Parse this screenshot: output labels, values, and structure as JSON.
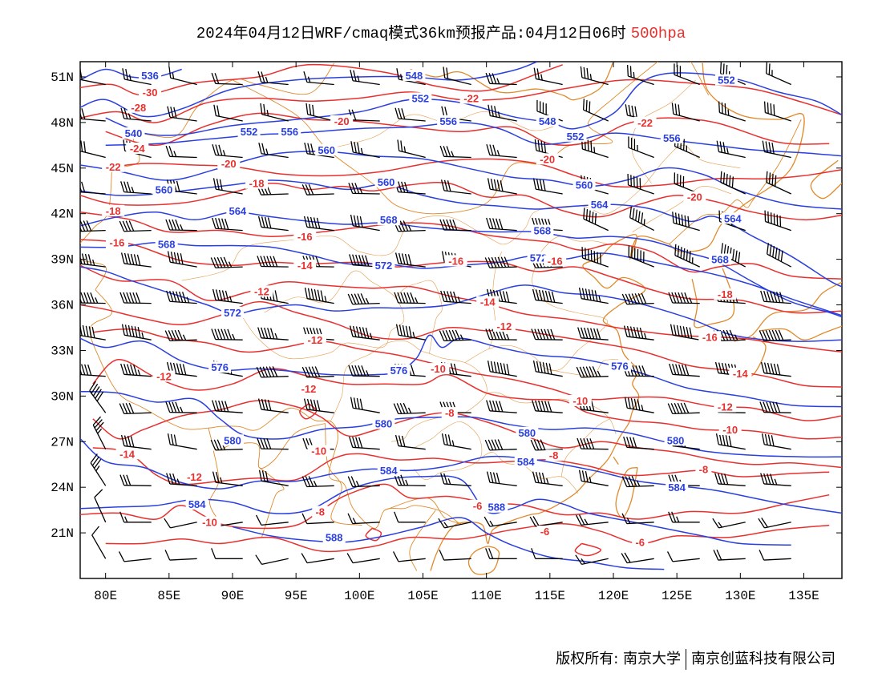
{
  "title": {
    "main": "2024年04月12日WRF/cmaq模式36km预报产品:04月12日06时",
    "level": "500hpa"
  },
  "colors": {
    "height_contour": "#2a3fe0",
    "temperature_contour": "#e8302e",
    "coastline": "#e08a2c",
    "wind_barb": "#000000"
  },
  "chart_data": {
    "type": "weather-map",
    "x_axis": {
      "range": [
        78,
        138
      ],
      "ticks": [
        80,
        85,
        90,
        95,
        100,
        105,
        110,
        115,
        120,
        125,
        130,
        135
      ],
      "labels": [
        "80E",
        "85E",
        "90E",
        "95E",
        "100E",
        "105E",
        "110E",
        "115E",
        "120E",
        "125E",
        "130E",
        "135E"
      ]
    },
    "y_axis": {
      "range": [
        18,
        52
      ],
      "ticks": [
        21,
        24,
        27,
        30,
        33,
        36,
        39,
        42,
        45,
        48,
        51
      ],
      "labels": [
        "21N",
        "24N",
        "27N",
        "30N",
        "33N",
        "36N",
        "39N",
        "42N",
        "45N",
        "48N",
        "51N"
      ]
    },
    "height_labels": [
      {
        "text": "536",
        "lon": 83.5,
        "lat": 51.0
      },
      {
        "text": "548",
        "lon": 104.3,
        "lat": 51.0
      },
      {
        "text": "552",
        "lon": 104.8,
        "lat": 49.5
      },
      {
        "text": "552",
        "lon": 128.9,
        "lat": 50.7
      },
      {
        "text": "540",
        "lon": 82.2,
        "lat": 47.2
      },
      {
        "text": "552",
        "lon": 91.3,
        "lat": 47.3
      },
      {
        "text": "556",
        "lon": 94.5,
        "lat": 47.3
      },
      {
        "text": "556",
        "lon": 107.0,
        "lat": 48.0
      },
      {
        "text": "548",
        "lon": 114.8,
        "lat": 48.0
      },
      {
        "text": "552",
        "lon": 117.0,
        "lat": 47.0
      },
      {
        "text": "556",
        "lon": 124.6,
        "lat": 46.9
      },
      {
        "text": "560",
        "lon": 97.4,
        "lat": 46.1
      },
      {
        "text": "560",
        "lon": 84.6,
        "lat": 43.5
      },
      {
        "text": "560",
        "lon": 102.1,
        "lat": 44.0
      },
      {
        "text": "560",
        "lon": 117.7,
        "lat": 43.8
      },
      {
        "text": "564",
        "lon": 90.4,
        "lat": 42.1
      },
      {
        "text": "568",
        "lon": 102.3,
        "lat": 41.5
      },
      {
        "text": "564",
        "lon": 118.9,
        "lat": 42.5
      },
      {
        "text": "564",
        "lon": 129.4,
        "lat": 41.6
      },
      {
        "text": "568",
        "lon": 84.8,
        "lat": 39.9
      },
      {
        "text": "568",
        "lon": 114.4,
        "lat": 40.8
      },
      {
        "text": "572",
        "lon": 114.1,
        "lat": 39.0
      },
      {
        "text": "572",
        "lon": 101.9,
        "lat": 38.5
      },
      {
        "text": "568",
        "lon": 128.4,
        "lat": 38.9
      },
      {
        "text": "572",
        "lon": 90.0,
        "lat": 35.4
      },
      {
        "text": "576",
        "lon": 89.0,
        "lat": 31.8
      },
      {
        "text": "576",
        "lon": 103.1,
        "lat": 31.6
      },
      {
        "text": "576",
        "lon": 120.5,
        "lat": 31.9
      },
      {
        "text": "580",
        "lon": 101.9,
        "lat": 28.1
      },
      {
        "text": "580",
        "lon": 113.2,
        "lat": 27.5
      },
      {
        "text": "580",
        "lon": 90.0,
        "lat": 27.0
      },
      {
        "text": "580",
        "lon": 124.9,
        "lat": 27.0
      },
      {
        "text": "584",
        "lon": 102.3,
        "lat": 25.0
      },
      {
        "text": "584",
        "lon": 113.1,
        "lat": 25.6
      },
      {
        "text": "584",
        "lon": 87.2,
        "lat": 22.8
      },
      {
        "text": "584",
        "lon": 125.0,
        "lat": 23.9
      },
      {
        "text": "588",
        "lon": 110.8,
        "lat": 22.6
      },
      {
        "text": "588",
        "lon": 98.0,
        "lat": 20.6
      }
    ],
    "temperature_labels": [
      {
        "text": "-30",
        "lon": 83.5,
        "lat": 49.9
      },
      {
        "text": "-28",
        "lon": 82.6,
        "lat": 48.9
      },
      {
        "text": "-24",
        "lon": 82.5,
        "lat": 46.2
      },
      {
        "text": "-22",
        "lon": 80.6,
        "lat": 45.0
      },
      {
        "text": "-22",
        "lon": 108.8,
        "lat": 49.5
      },
      {
        "text": "-22",
        "lon": 122.5,
        "lat": 47.9
      },
      {
        "text": "-20",
        "lon": 98.6,
        "lat": 48.0
      },
      {
        "text": "-20",
        "lon": 89.7,
        "lat": 45.2
      },
      {
        "text": "-20",
        "lon": 114.8,
        "lat": 45.5
      },
      {
        "text": "-20",
        "lon": 126.4,
        "lat": 43.0
      },
      {
        "text": "-18",
        "lon": 80.6,
        "lat": 42.1
      },
      {
        "text": "-18",
        "lon": 91.9,
        "lat": 43.9
      },
      {
        "text": "-16",
        "lon": 80.9,
        "lat": 40.0
      },
      {
        "text": "-16",
        "lon": 95.7,
        "lat": 40.4
      },
      {
        "text": "-16",
        "lon": 107.6,
        "lat": 38.8
      },
      {
        "text": "-16",
        "lon": 115.4,
        "lat": 38.8
      },
      {
        "text": "-18",
        "lon": 128.8,
        "lat": 36.6
      },
      {
        "text": "-14",
        "lon": 95.7,
        "lat": 38.5
      },
      {
        "text": "-12",
        "lon": 92.3,
        "lat": 36.8
      },
      {
        "text": "-14",
        "lon": 110.1,
        "lat": 36.1
      },
      {
        "text": "-12",
        "lon": 111.4,
        "lat": 34.5
      },
      {
        "text": "-16",
        "lon": 127.6,
        "lat": 33.8
      },
      {
        "text": "-12",
        "lon": 96.5,
        "lat": 33.6
      },
      {
        "text": "-12",
        "lon": 84.6,
        "lat": 31.2
      },
      {
        "text": "-10",
        "lon": 106.2,
        "lat": 31.7
      },
      {
        "text": "-14",
        "lon": 130.0,
        "lat": 31.4
      },
      {
        "text": "-12",
        "lon": 96.0,
        "lat": 30.4
      },
      {
        "text": "-10",
        "lon": 117.4,
        "lat": 29.6
      },
      {
        "text": "-12",
        "lon": 128.8,
        "lat": 29.2
      },
      {
        "text": "-8",
        "lon": 107.1,
        "lat": 28.8
      },
      {
        "text": "-10",
        "lon": 129.2,
        "lat": 27.7
      },
      {
        "text": "-14",
        "lon": 81.7,
        "lat": 26.1
      },
      {
        "text": "-10",
        "lon": 96.8,
        "lat": 26.3
      },
      {
        "text": "-8",
        "lon": 115.3,
        "lat": 26.0
      },
      {
        "text": "-8",
        "lon": 127.1,
        "lat": 25.1
      },
      {
        "text": "-12",
        "lon": 87.0,
        "lat": 24.6
      },
      {
        "text": "-8",
        "lon": 96.9,
        "lat": 22.3
      },
      {
        "text": "-6",
        "lon": 109.3,
        "lat": 22.7
      },
      {
        "text": "-10",
        "lon": 88.2,
        "lat": 21.6
      },
      {
        "text": "-6",
        "lon": 114.6,
        "lat": 21.0
      },
      {
        "text": "-6",
        "lon": 122.1,
        "lat": 20.3
      }
    ]
  },
  "footer": {
    "copyright": "版权所有: 南京大学",
    "company": "南京创蓝科技有限公司"
  }
}
